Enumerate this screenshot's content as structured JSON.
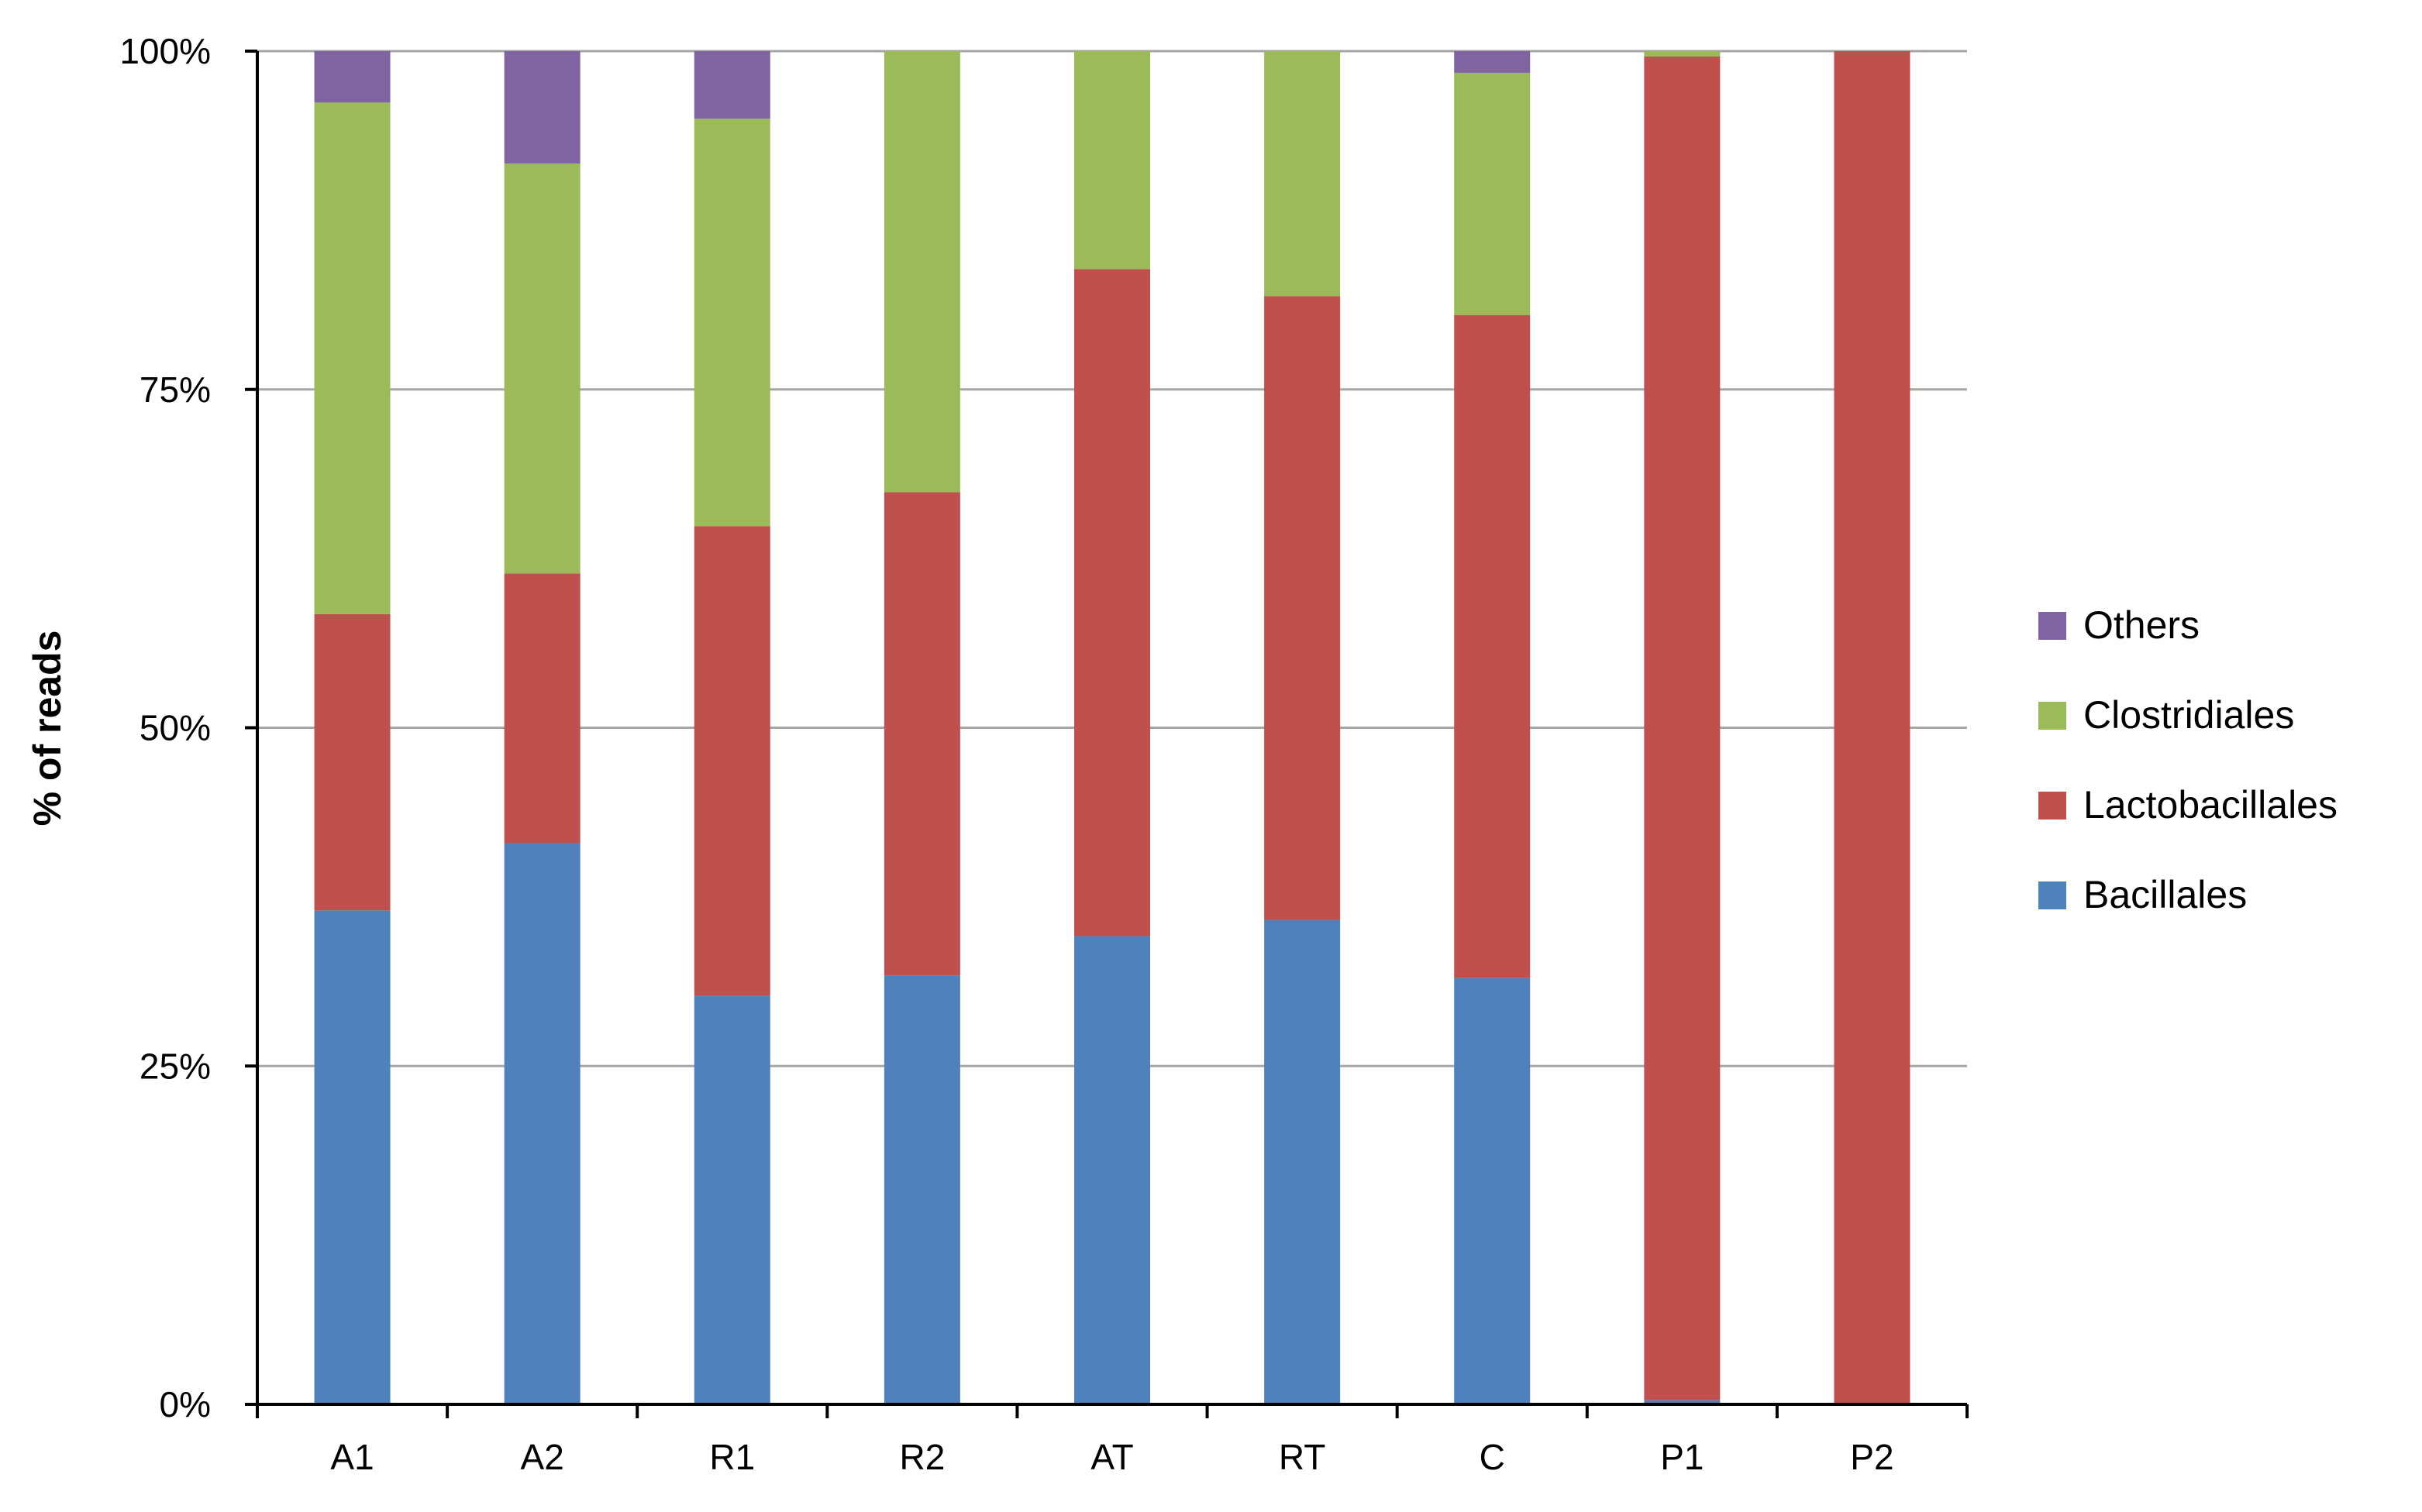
{
  "chart_data": {
    "type": "bar",
    "stacked": true,
    "percent_stacked": true,
    "categories": [
      "A1",
      "A2",
      "R1",
      "R2",
      "AT",
      "RT",
      "C",
      "P1",
      "P2"
    ],
    "series": [
      {
        "name": "Bacillales",
        "color": "#4F81BD",
        "values": [
          36.5,
          41.5,
          30.2,
          31.7,
          34.6,
          35.8,
          31.5,
          0.3,
          0.0
        ]
      },
      {
        "name": "Lactobacillales",
        "color": "#C0504D",
        "values": [
          21.9,
          19.9,
          34.7,
          35.7,
          49.3,
          46.1,
          49.0,
          99.3,
          100.0
        ]
      },
      {
        "name": "Clostridiales",
        "color": "#9BBB59",
        "values": [
          37.8,
          30.3,
          30.1,
          32.6,
          16.1,
          18.1,
          17.9,
          0.4,
          0.0
        ]
      },
      {
        "name": "Others",
        "color": "#8064A2",
        "values": [
          3.8,
          8.3,
          5.0,
          0.0,
          0.0,
          0.0,
          1.6,
          0.0,
          0.0
        ]
      }
    ],
    "yaxis": {
      "label": "% of reads",
      "ticks": [
        "0%",
        "25%",
        "50%",
        "75%",
        "100%"
      ],
      "tick_values": [
        0,
        25,
        50,
        75,
        100
      ],
      "range": [
        0,
        100
      ]
    },
    "grid": true,
    "legend": {
      "placement": "right",
      "order": [
        "Others",
        "Clostridiales",
        "Lactobacillales",
        "Bacillales"
      ]
    },
    "colors": {
      "gridline": "#A6A6A6",
      "axis": "#000000"
    }
  }
}
